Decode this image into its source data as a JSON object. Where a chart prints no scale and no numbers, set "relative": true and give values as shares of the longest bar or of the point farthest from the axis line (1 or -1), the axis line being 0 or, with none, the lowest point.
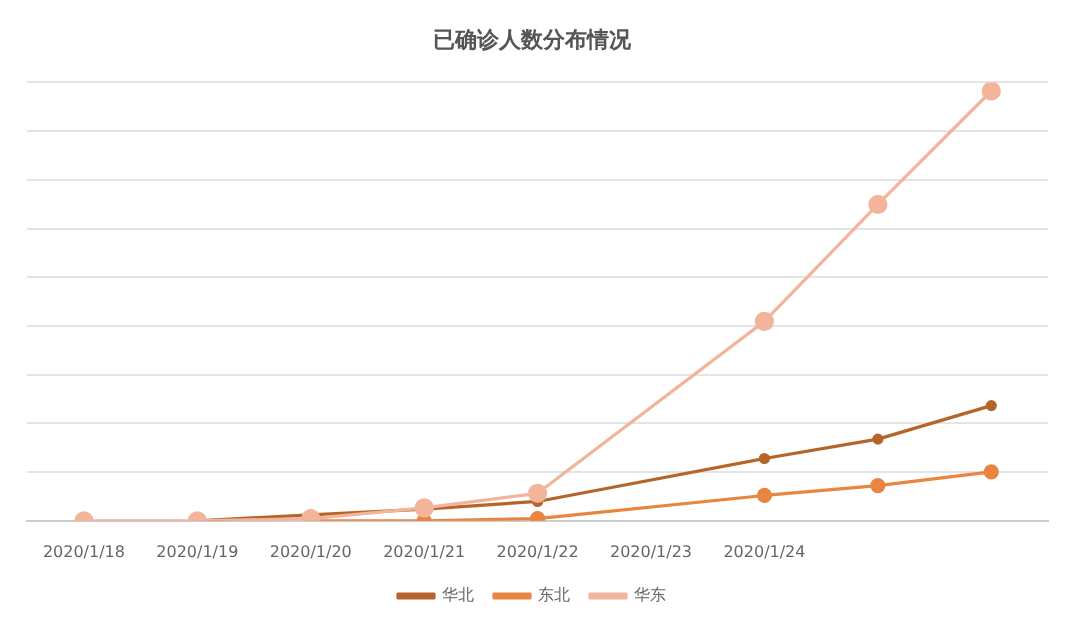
{
  "chart_data": {
    "type": "line",
    "title": "已确诊人数分布情况",
    "relative": true,
    "categories": [
      "2020/1/18",
      "2020/1/19",
      "2020/1/20",
      "2020/1/21",
      "2020/1/22",
      "2020/1/23",
      "2020/1/24",
      null,
      null
    ],
    "series": [
      {
        "name": "华北",
        "color": "#b5652a",
        "values": [
          null,
          0,
          0.014,
          0.027,
          0.045,
          null,
          0.145,
          0.19,
          0.268
        ]
      },
      {
        "name": "东北",
        "color": "#e8853f",
        "values": [
          null,
          null,
          0,
          0,
          0.005,
          null,
          0.059,
          0.082,
          0.114
        ]
      },
      {
        "name": "华东",
        "color": "#f2b49a",
        "values": [
          0,
          0,
          0.005,
          0.03,
          0.064,
          null,
          0.464,
          0.736,
          1
        ]
      }
    ],
    "grid": "y",
    "legend": "bottom",
    "marker": "circle"
  }
}
